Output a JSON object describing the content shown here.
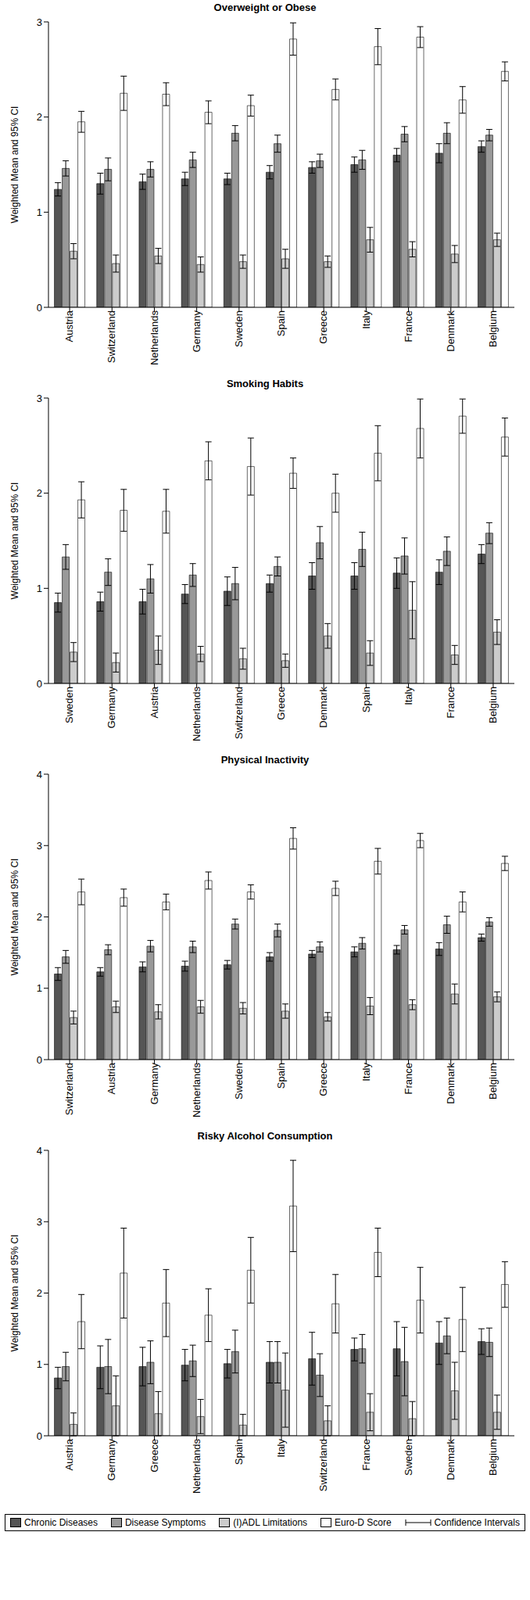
{
  "chart_data": [
    {
      "type": "bar",
      "title": "Overweight or Obese",
      "y_label": "Weighted Mean and 95% CI",
      "categories": [
        "Austria",
        "Switzerland",
        "Netherlands",
        "Germany",
        "Sweden",
        "Spain",
        "Greece",
        "Italy",
        "France",
        "Denmark",
        "Belgium"
      ],
      "ylim": [
        0,
        3
      ],
      "yticks": [
        0,
        1,
        2,
        3
      ],
      "series": [
        {
          "name": "Chronic Diseases",
          "color": "#555555",
          "values": [
            1.24,
            1.3,
            1.32,
            1.35,
            1.35,
            1.42,
            1.47,
            1.5,
            1.6,
            1.62,
            1.69
          ],
          "errors": [
            0.07,
            0.11,
            0.08,
            0.07,
            0.06,
            0.07,
            0.06,
            0.08,
            0.07,
            0.1,
            0.06
          ]
        },
        {
          "name": "Disease Symptoms",
          "color": "#999999",
          "values": [
            1.46,
            1.45,
            1.45,
            1.55,
            1.83,
            1.72,
            1.54,
            1.55,
            1.82,
            1.83,
            1.81
          ],
          "errors": [
            0.08,
            0.12,
            0.08,
            0.08,
            0.08,
            0.09,
            0.07,
            0.1,
            0.08,
            0.11,
            0.06
          ]
        },
        {
          "name": "(I)ADL Limitations",
          "color": "#cccccc",
          "values": [
            0.59,
            0.46,
            0.54,
            0.45,
            0.48,
            0.51,
            0.48,
            0.71,
            0.61,
            0.56,
            0.71
          ],
          "errors": [
            0.08,
            0.09,
            0.08,
            0.08,
            0.07,
            0.1,
            0.06,
            0.13,
            0.08,
            0.09,
            0.07
          ]
        },
        {
          "name": "Euro-D Score",
          "color": "#ffffff",
          "values": [
            1.95,
            2.25,
            2.24,
            2.05,
            2.12,
            2.82,
            2.29,
            2.74,
            2.84,
            2.18,
            2.48
          ],
          "errors": [
            0.11,
            0.18,
            0.12,
            0.12,
            0.11,
            0.17,
            0.11,
            0.19,
            0.11,
            0.14,
            0.1
          ]
        }
      ]
    },
    {
      "type": "bar",
      "title": "Smoking Habits",
      "y_label": "Weighted Mean and 95% CI",
      "categories": [
        "Sweden",
        "Germany",
        "Austria",
        "Netherlands",
        "Switzerland",
        "Greece",
        "Denmark",
        "Spain",
        "Italy",
        "France",
        "Belgium"
      ],
      "ylim": [
        0,
        3
      ],
      "yticks": [
        0,
        1,
        2,
        3
      ],
      "series": [
        {
          "name": "Chronic Diseases",
          "color": "#555555",
          "values": [
            0.85,
            0.86,
            0.86,
            0.94,
            0.97,
            1.05,
            1.13,
            1.13,
            1.16,
            1.17,
            1.36
          ],
          "errors": [
            0.1,
            0.1,
            0.13,
            0.1,
            0.15,
            0.09,
            0.14,
            0.14,
            0.16,
            0.13,
            0.1
          ]
        },
        {
          "name": "Disease Symptoms",
          "color": "#999999",
          "values": [
            1.33,
            1.17,
            1.1,
            1.14,
            1.05,
            1.23,
            1.48,
            1.41,
            1.34,
            1.39,
            1.58
          ],
          "errors": [
            0.13,
            0.14,
            0.15,
            0.12,
            0.17,
            0.1,
            0.17,
            0.18,
            0.19,
            0.15,
            0.11
          ]
        },
        {
          "name": "(I)ADL Limitations",
          "color": "#cccccc",
          "values": [
            0.33,
            0.22,
            0.35,
            0.31,
            0.26,
            0.24,
            0.5,
            0.32,
            0.77,
            0.3,
            0.54
          ],
          "errors": [
            0.1,
            0.1,
            0.15,
            0.08,
            0.11,
            0.07,
            0.13,
            0.13,
            0.3,
            0.1,
            0.13
          ]
        },
        {
          "name": "Euro-D Score",
          "color": "#ffffff",
          "values": [
            1.93,
            1.82,
            1.81,
            2.34,
            2.28,
            2.21,
            2.0,
            2.42,
            2.68,
            2.81,
            2.59
          ],
          "errors": [
            0.19,
            0.22,
            0.23,
            0.2,
            0.3,
            0.16,
            0.2,
            0.29,
            0.31,
            0.18,
            0.2
          ]
        }
      ]
    },
    {
      "type": "bar",
      "title": "Physical Inactivity",
      "y_label": "Weighted Mean and 95% CI",
      "categories": [
        "Switzerland",
        "Austria",
        "Germany",
        "Netherlands",
        "Sweden",
        "Spain",
        "Greece",
        "Italy",
        "France",
        "Denmark",
        "Belgium"
      ],
      "ylim": [
        0,
        4
      ],
      "yticks": [
        0,
        1,
        2,
        3,
        4
      ],
      "series": [
        {
          "name": "Chronic Diseases",
          "color": "#555555",
          "values": [
            1.2,
            1.23,
            1.3,
            1.31,
            1.33,
            1.44,
            1.48,
            1.51,
            1.54,
            1.55,
            1.71
          ],
          "errors": [
            0.09,
            0.06,
            0.07,
            0.07,
            0.06,
            0.06,
            0.05,
            0.07,
            0.06,
            0.09,
            0.05
          ]
        },
        {
          "name": "Disease Symptoms",
          "color": "#999999",
          "values": [
            1.44,
            1.54,
            1.59,
            1.58,
            1.9,
            1.81,
            1.58,
            1.63,
            1.82,
            1.89,
            1.93
          ],
          "errors": [
            0.09,
            0.07,
            0.08,
            0.08,
            0.07,
            0.09,
            0.07,
            0.08,
            0.06,
            0.12,
            0.06
          ]
        },
        {
          "name": "(I)ADL Limitations",
          "color": "#cccccc",
          "values": [
            0.59,
            0.74,
            0.67,
            0.74,
            0.72,
            0.68,
            0.6,
            0.75,
            0.77,
            0.92,
            0.88
          ],
          "errors": [
            0.09,
            0.08,
            0.1,
            0.09,
            0.08,
            0.1,
            0.06,
            0.12,
            0.07,
            0.14,
            0.07
          ]
        },
        {
          "name": "Euro-D Score",
          "color": "#ffffff",
          "values": [
            2.35,
            2.27,
            2.21,
            2.51,
            2.35,
            3.1,
            2.4,
            2.78,
            3.07,
            2.21,
            2.75
          ],
          "errors": [
            0.18,
            0.12,
            0.11,
            0.12,
            0.1,
            0.15,
            0.1,
            0.18,
            0.1,
            0.14,
            0.1
          ]
        }
      ]
    },
    {
      "type": "bar",
      "title": "Risky Alcohol Consumption",
      "y_label": "Weighted Mean and 95% CI",
      "categories": [
        "Austria",
        "Germany",
        "Greece",
        "Netherlands",
        "Spain",
        "Italy",
        "Switzerland",
        "France",
        "Sweden",
        "Denmark",
        "Belgium"
      ],
      "ylim": [
        0,
        4
      ],
      "yticks": [
        0,
        1,
        2,
        3,
        4
      ],
      "series": [
        {
          "name": "Chronic Diseases",
          "color": "#555555",
          "values": [
            0.81,
            0.96,
            0.97,
            0.99,
            1.01,
            1.03,
            1.08,
            1.21,
            1.22,
            1.3,
            1.32
          ],
          "errors": [
            0.15,
            0.3,
            0.27,
            0.22,
            0.2,
            0.29,
            0.37,
            0.16,
            0.38,
            0.3,
            0.18
          ]
        },
        {
          "name": "Disease Symptoms",
          "color": "#999999",
          "values": [
            0.97,
            0.97,
            1.03,
            1.05,
            1.18,
            1.03,
            0.85,
            1.22,
            1.04,
            1.4,
            1.31
          ],
          "errors": [
            0.2,
            0.38,
            0.3,
            0.22,
            0.3,
            0.29,
            0.3,
            0.2,
            0.48,
            0.25,
            0.2
          ]
        },
        {
          "name": "(I)ADL Limitations",
          "color": "#cccccc",
          "values": [
            0.16,
            0.42,
            0.31,
            0.27,
            0.15,
            0.64,
            0.21,
            0.33,
            0.24,
            0.63,
            0.33
          ],
          "errors": [
            0.16,
            0.42,
            0.31,
            0.24,
            0.15,
            0.52,
            0.21,
            0.26,
            0.24,
            0.4,
            0.24
          ]
        },
        {
          "name": "Euro-D Score",
          "color": "#ffffff",
          "values": [
            1.6,
            2.28,
            1.86,
            1.69,
            2.32,
            3.22,
            1.85,
            2.57,
            1.9,
            1.63,
            2.12
          ],
          "errors": [
            0.38,
            0.63,
            0.47,
            0.37,
            0.46,
            0.64,
            0.41,
            0.34,
            0.46,
            0.45,
            0.32
          ]
        }
      ]
    }
  ],
  "error_bar_label": "Confidence Intervals"
}
